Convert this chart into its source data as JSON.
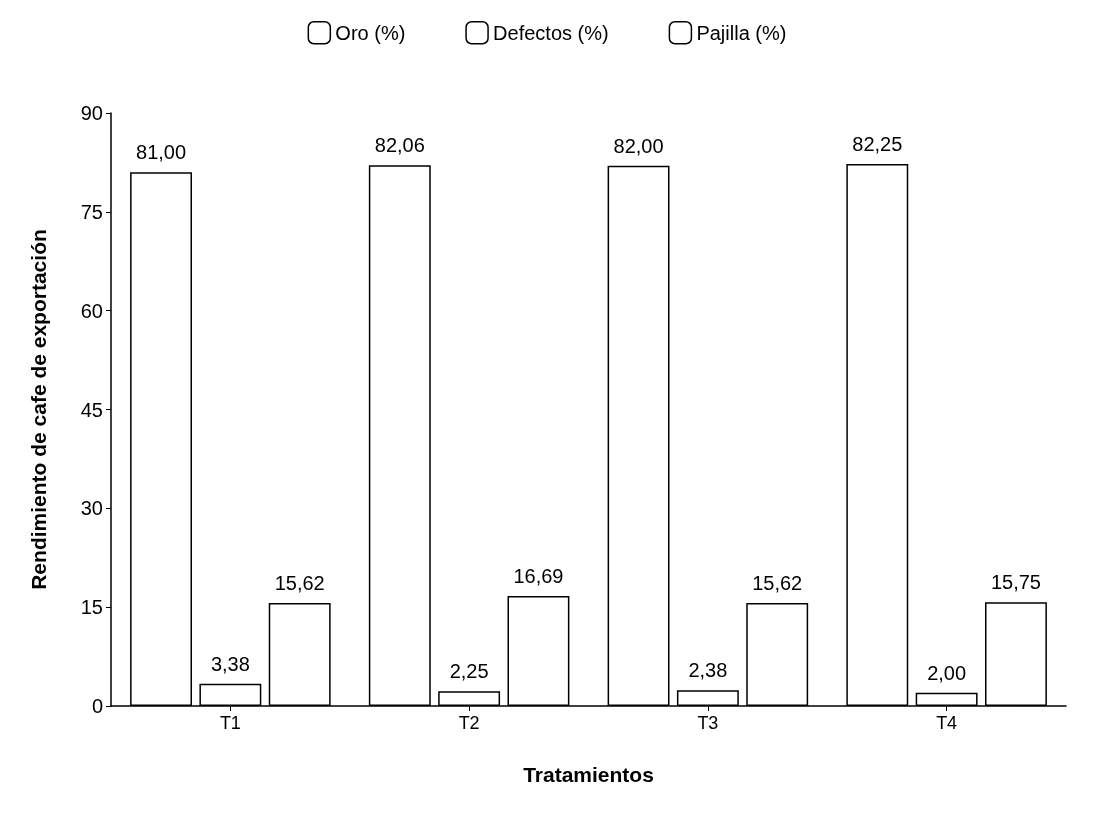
{
  "chart_data": {
    "type": "bar",
    "xlabel": "Tratamientos",
    "ylabel": "Rendimiento de cafe de exportación",
    "categories": [
      "T1",
      "T2",
      "T3",
      "T4"
    ],
    "series": [
      {
        "name": "Oro (%)",
        "color": "#ffffff",
        "values": [
          81.0,
          82.06,
          82.0,
          82.25
        ],
        "value_labels": [
          "81,00",
          "82,06",
          "82,00",
          "82,25"
        ]
      },
      {
        "name": "Defectos (%)",
        "color": "#ffffff",
        "values": [
          3.38,
          2.25,
          2.38,
          2.0
        ],
        "value_labels": [
          "3,38",
          "2,25",
          "2,38",
          "2,00"
        ]
      },
      {
        "name": "Pajilla (%)",
        "color": "#ffffff",
        "values": [
          15.62,
          16.69,
          15.62,
          15.75
        ],
        "value_labels": [
          "15,62",
          "16,69",
          "15,62",
          "15,75"
        ]
      }
    ],
    "ylim": [
      0,
      90
    ],
    "yticks": [
      0,
      15,
      30,
      45,
      60,
      75,
      90
    ],
    "grid": false,
    "legend": "top"
  }
}
